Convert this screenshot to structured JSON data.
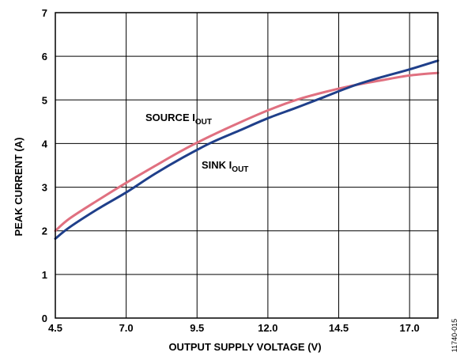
{
  "chart_data": {
    "type": "line",
    "title": "",
    "xlabel": "OUTPUT SUPPLY VOLTAGE (V)",
    "ylabel": "PEAK CURRENT (A)",
    "xlim": [
      4.5,
      18.0
    ],
    "ylim": [
      0,
      7
    ],
    "xticks": [
      4.5,
      7.0,
      9.5,
      12.0,
      14.5,
      17.0
    ],
    "xtick_labels": [
      "4.5",
      "7.0",
      "9.5",
      "12.0",
      "14.5",
      "17.0"
    ],
    "yticks": [
      0,
      1,
      2,
      3,
      4,
      5,
      6,
      7
    ],
    "ytick_labels": [
      "0",
      "1",
      "2",
      "3",
      "4",
      "5",
      "6",
      "7"
    ],
    "grid": true,
    "series": [
      {
        "name": "SOURCE I",
        "subscript": "OUT",
        "color": "#e07080",
        "x": [
          4.5,
          5.0,
          6.0,
          7.0,
          8.0,
          9.0,
          10.0,
          11.0,
          12.0,
          13.0,
          14.0,
          15.0,
          16.0,
          17.0,
          18.0
        ],
        "y": [
          2.0,
          2.28,
          2.7,
          3.1,
          3.48,
          3.85,
          4.18,
          4.48,
          4.76,
          5.0,
          5.18,
          5.33,
          5.45,
          5.56,
          5.62
        ]
      },
      {
        "name": "SINK I",
        "subscript": "OUT",
        "color": "#1f3f8a",
        "x": [
          4.5,
          5.0,
          6.0,
          7.0,
          8.0,
          9.0,
          10.0,
          11.0,
          12.0,
          13.0,
          14.0,
          15.0,
          16.0,
          17.0,
          18.0
        ],
        "y": [
          1.82,
          2.08,
          2.5,
          2.88,
          3.3,
          3.68,
          4.02,
          4.3,
          4.58,
          4.82,
          5.07,
          5.32,
          5.52,
          5.7,
          5.9
        ]
      }
    ]
  },
  "figure_id": "11740-015"
}
